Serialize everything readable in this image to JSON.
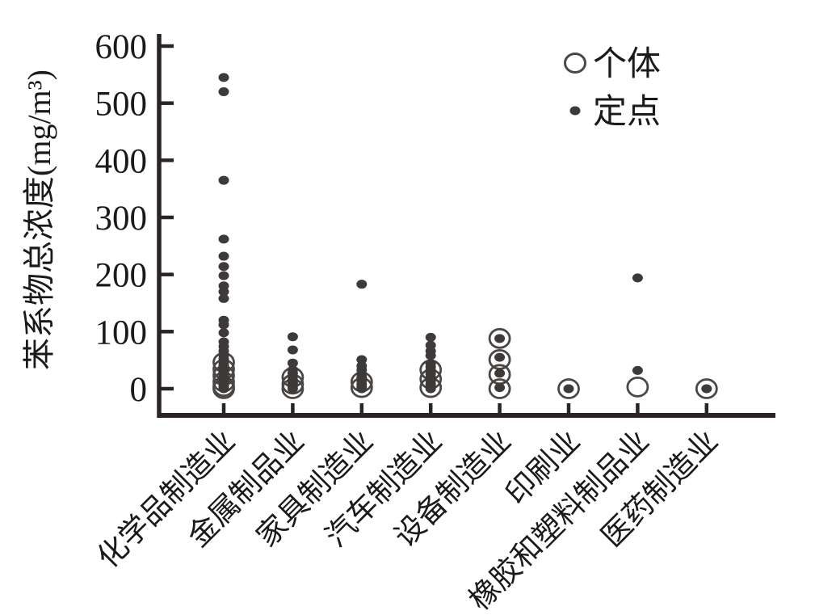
{
  "chart_data": {
    "type": "scatter",
    "title": "",
    "xlabel": "",
    "ylabel": "苯系物总浓度(mg/m³)",
    "ylim": [
      0,
      600
    ],
    "yticks": [
      0,
      100,
      200,
      300,
      400,
      500,
      600
    ],
    "grid": false,
    "legend_position": "upper-right-inside",
    "categories": [
      "化学品制造业",
      "金属制品业",
      "家具制造业",
      "汽车制造业",
      "设备制造业",
      "印刷业",
      "橡胶和塑料制品业",
      "医药制造业"
    ],
    "legend": [
      {
        "label": "个体",
        "marker": "open-circle"
      },
      {
        "label": "定点",
        "marker": "filled-dot"
      }
    ],
    "series": [
      {
        "name": "个体",
        "marker": "open-circle",
        "values": [
          [
            46,
            34,
            23,
            12,
            4,
            0
          ],
          [
            20,
            8,
            0
          ],
          [
            12,
            2
          ],
          [
            33,
            17,
            2
          ],
          [
            88,
            51,
            25,
            0
          ],
          [
            0
          ],
          [
            3
          ],
          [
            0
          ]
        ]
      },
      {
        "name": "定点",
        "marker": "filled-dot",
        "values": [
          [
            545,
            520,
            365,
            262,
            232,
            214,
            198,
            180,
            170,
            158,
            120,
            112,
            98,
            82,
            74,
            66,
            58,
            52,
            47,
            42,
            38,
            34,
            30,
            26,
            22,
            18,
            15,
            12,
            9,
            6,
            3,
            0
          ],
          [
            91,
            68,
            45,
            33,
            27,
            21,
            15,
            10,
            5,
            0
          ],
          [
            183,
            51,
            40,
            33,
            26,
            20,
            14,
            8,
            3,
            0
          ],
          [
            90,
            76,
            66,
            58,
            44,
            38,
            32,
            26,
            20,
            14,
            8,
            3,
            0
          ],
          [
            88,
            55,
            27,
            2
          ],
          [
            0
          ],
          [
            194,
            32
          ],
          [
            0
          ]
        ]
      }
    ]
  },
  "colors": {
    "axis": "#2a2422",
    "dot_fill": "#3d3a39",
    "circle_stroke": "#4a4745",
    "text": "#1c1a19"
  }
}
